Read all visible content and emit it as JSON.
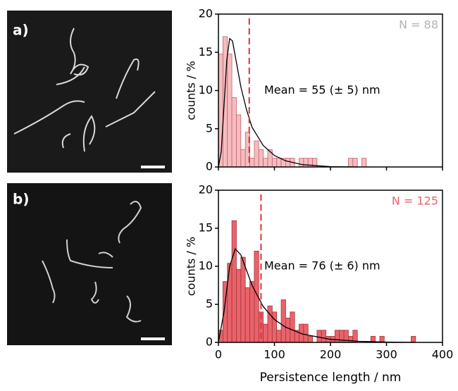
{
  "chart_data": [
    {
      "type": "histogram",
      "panel_label": "a)",
      "n_label": "N = 88",
      "n_color": "#b5b5b5",
      "color": "#f6bcc0",
      "edge_color": "#c0646c",
      "mean_color": "#d9333c",
      "annotation": "Mean = 55 (± 5) nm",
      "mean": 55,
      "ylabel": "counts / %",
      "xlim": [
        0,
        400
      ],
      "xticks": [
        0,
        100,
        200,
        300,
        400
      ],
      "xtick_labels": false,
      "ylim": [
        0,
        20
      ],
      "yticks": [
        0,
        5,
        10,
        15,
        20
      ],
      "bins": [
        0,
        8,
        16,
        24,
        32,
        40,
        48,
        56,
        64,
        72,
        80,
        88,
        96,
        104,
        112,
        120,
        128,
        136,
        144,
        152,
        160,
        168,
        176,
        184,
        192,
        200,
        208,
        216,
        224,
        232,
        240,
        248,
        256,
        264,
        272
      ],
      "values": [
        14.77,
        17.05,
        14.77,
        9.09,
        6.82,
        2.27,
        4.55,
        1.14,
        3.41,
        2.27,
        1.14,
        2.27,
        1.14,
        1.14,
        1.14,
        1.14,
        1.14,
        0,
        1.14,
        1.14,
        1.14,
        1.14,
        0,
        0,
        0,
        0,
        0,
        0,
        0,
        1.14,
        1.14,
        0,
        1.14,
        0
      ],
      "fit": {
        "x": [
          0,
          5,
          10,
          15,
          20,
          25,
          30,
          40,
          50,
          60,
          80,
          100,
          120,
          150,
          200,
          250
        ],
        "y": [
          0,
          2,
          8,
          14,
          16.8,
          16.5,
          14.5,
          10.5,
          7.5,
          5.2,
          2.8,
          1.5,
          0.8,
          0.3,
          0.05,
          0
        ]
      }
    },
    {
      "type": "histogram",
      "panel_label": "b)",
      "n_label": "N = 125",
      "n_color": "#e8636b",
      "color": "#e8636b",
      "edge_color": "#a8323a",
      "mean_color": "#d9333c",
      "annotation": "Mean = 76 (± 6) nm",
      "mean": 76,
      "ylabel": "counts / %",
      "xlabel": "Persistence length / nm",
      "xlim": [
        0,
        400
      ],
      "xticks": [
        0,
        100,
        200,
        300,
        400
      ],
      "xtick_labels": true,
      "ylim": [
        0,
        20
      ],
      "yticks": [
        0,
        5,
        10,
        15,
        20
      ],
      "bins": [
        0,
        8,
        16,
        24,
        32,
        40,
        48,
        56,
        64,
        72,
        80,
        88,
        96,
        104,
        112,
        120,
        128,
        136,
        144,
        152,
        160,
        168,
        176,
        184,
        192,
        200,
        208,
        216,
        224,
        232,
        240,
        248,
        256,
        264,
        272,
        280,
        288,
        296,
        304,
        312,
        320,
        328,
        336,
        344,
        352
      ],
      "values": [
        1.6,
        8,
        10.4,
        16,
        9.6,
        11.2,
        7.2,
        8,
        12,
        4,
        2.4,
        4.8,
        4,
        1.6,
        5.6,
        3.2,
        4,
        1.6,
        2.4,
        2.4,
        0.8,
        0,
        1.6,
        1.6,
        0.8,
        0.8,
        1.6,
        1.6,
        1.6,
        0.8,
        1.6,
        0,
        0,
        0,
        0.8,
        0,
        0.8,
        0,
        0,
        0,
        0,
        0,
        0,
        0.8
      ],
      "fit": {
        "x": [
          0,
          10,
          20,
          30,
          40,
          50,
          60,
          80,
          100,
          120,
          150,
          200,
          250,
          300,
          350
        ],
        "y": [
          0,
          4,
          10,
          12.3,
          11.5,
          9.5,
          7.5,
          4.7,
          3,
          2,
          1.1,
          0.4,
          0.15,
          0.05,
          0
        ]
      }
    }
  ]
}
